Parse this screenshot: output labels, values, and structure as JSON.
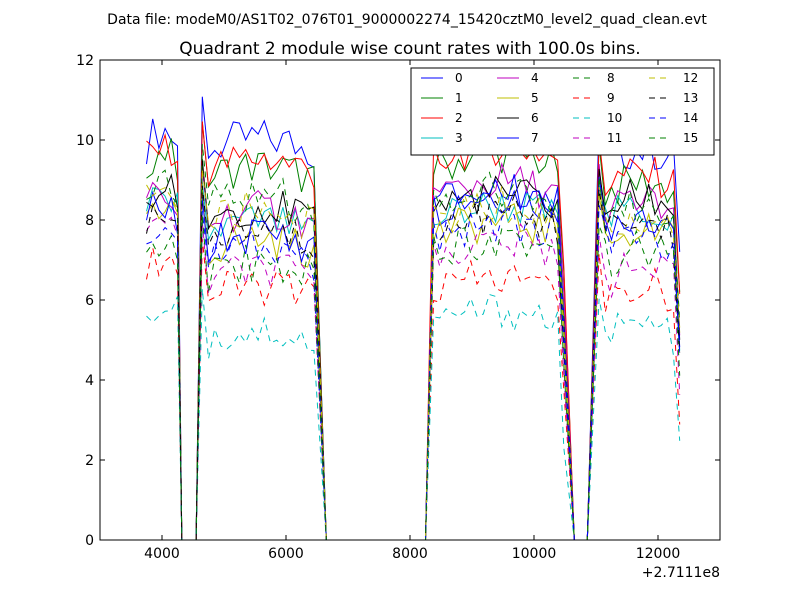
{
  "figure": {
    "suptitle": "Data file: modeM0/AS1T02_076T01_9000002274_15420cztM0_level2_quad_clean.evt"
  },
  "chart_data": {
    "type": "line",
    "title": "Quadrant 2 module wise count rates with 100.0s bins.",
    "xlabel": "",
    "ylabel": "",
    "x_offset_label": "+2.7111e8",
    "xlim": [
      3000,
      13000
    ],
    "ylim": [
      0,
      12
    ],
    "xticks": [
      4000,
      6000,
      8000,
      10000,
      12000
    ],
    "yticks": [
      0,
      2,
      4,
      6,
      8,
      10,
      12
    ],
    "grid": false,
    "legend_position": "top-right",
    "legend_columns": 4,
    "segments": [
      {
        "start": 3750,
        "bins": 6,
        "rise_from": null,
        "fall_to": 4320
      },
      {
        "start": 4650,
        "bins": 19,
        "rise_from": 4550,
        "fall_to": 6650
      },
      {
        "start": 8380,
        "bins": 22,
        "rise_from": 8250,
        "fall_to": 10650
      },
      {
        "start": 11050,
        "bins": 14,
        "rise_from": 10860,
        "fall_to": null
      }
    ],
    "segment_notes": "each segment lists bin start x, number of 100s bins; zero runs between segments",
    "series": [
      {
        "name": "0",
        "color": "#0000ff",
        "dash": "solid",
        "levels": [
          9.9,
          9.7,
          8.3,
          9.4
        ]
      },
      {
        "name": "1",
        "color": "#008000",
        "dash": "solid",
        "levels": [
          9.4,
          9.0,
          9.3,
          8.6
        ]
      },
      {
        "name": "2",
        "color": "#ff0000",
        "dash": "solid",
        "levels": [
          9.5,
          9.2,
          9.5,
          8.8
        ]
      },
      {
        "name": "3",
        "color": "#00bfbf",
        "dash": "solid",
        "levels": [
          8.2,
          7.6,
          8.0,
          7.9
        ]
      },
      {
        "name": "4",
        "color": "#bf00bf",
        "dash": "solid",
        "levels": [
          8.4,
          7.9,
          8.6,
          8.1
        ]
      },
      {
        "name": "5",
        "color": "#bfbf00",
        "dash": "solid",
        "levels": [
          7.9,
          7.2,
          7.6,
          7.4
        ]
      },
      {
        "name": "6",
        "color": "#000000",
        "dash": "solid",
        "levels": [
          8.5,
          8.0,
          8.3,
          8.2
        ]
      },
      {
        "name": "7",
        "color": "#0000ff",
        "dash": "solid",
        "levels": [
          8.0,
          7.3,
          8.4,
          7.8
        ]
      },
      {
        "name": "8",
        "color": "#008000",
        "dash": "dashed",
        "levels": [
          8.8,
          8.3,
          8.4,
          8.0
        ]
      },
      {
        "name": "9",
        "color": "#ff0000",
        "dash": "dashed",
        "levels": [
          6.7,
          6.0,
          6.2,
          6.0
        ]
      },
      {
        "name": "10",
        "color": "#00bfbf",
        "dash": "dashed",
        "levels": [
          5.6,
          4.9,
          5.4,
          5.0
        ]
      },
      {
        "name": "11",
        "color": "#bf00bf",
        "dash": "dashed",
        "levels": [
          7.6,
          6.4,
          7.1,
          6.4
        ]
      },
      {
        "name": "12",
        "color": "#bfbf00",
        "dash": "dashed",
        "levels": [
          8.4,
          7.9,
          8.0,
          7.7
        ]
      },
      {
        "name": "13",
        "color": "#000000",
        "dash": "dashed",
        "levels": [
          8.0,
          7.4,
          7.8,
          7.6
        ]
      },
      {
        "name": "14",
        "color": "#0000ff",
        "dash": "dashed",
        "levels": [
          7.4,
          6.9,
          7.6,
          7.3
        ]
      },
      {
        "name": "15",
        "color": "#008000",
        "dash": "dashed",
        "levels": [
          7.0,
          6.6,
          7.2,
          6.9
        ]
      }
    ]
  }
}
